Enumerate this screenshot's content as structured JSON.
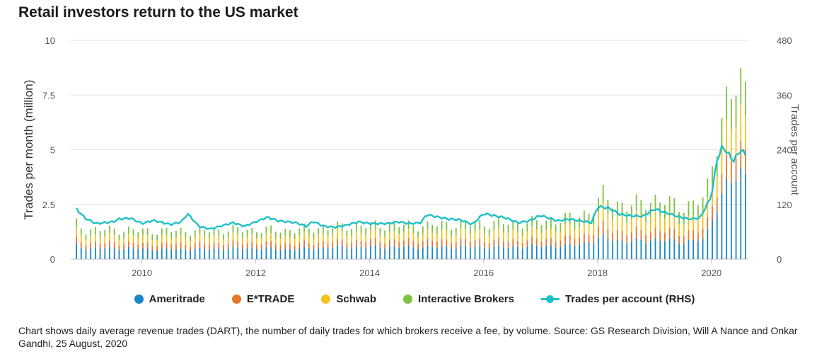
{
  "chart_data": {
    "type": "bar",
    "title": "Retail investors return to the US market",
    "ylabel": "Trades per month (million)",
    "y2label": "Trades per account",
    "ylim": [
      0,
      10
    ],
    "y2lim": [
      0,
      480
    ],
    "yticks": [
      "0",
      "2.5",
      "5",
      "7.5",
      "10"
    ],
    "y2ticks": [
      "0",
      "120",
      "240",
      "360",
      "480"
    ],
    "xticks": [
      "2010",
      "2012",
      "2014",
      "2016",
      "2018",
      "2020"
    ],
    "xrange": [
      2008.75,
      2020.65
    ],
    "grid": true,
    "legend_position": "bottom",
    "stacking": "stacked",
    "series": [
      {
        "name": "Ameritrade",
        "color": "#1a86c6",
        "points": [
          [
            2008.85,
            0.6
          ],
          [
            2009.0,
            0.5
          ],
          [
            2009.25,
            0.5
          ],
          [
            2009.5,
            0.5
          ],
          [
            2009.75,
            0.5
          ],
          [
            2010.0,
            0.45
          ],
          [
            2010.5,
            0.45
          ],
          [
            2011.0,
            0.45
          ],
          [
            2011.5,
            0.5
          ],
          [
            2012.0,
            0.5
          ],
          [
            2012.5,
            0.45
          ],
          [
            2013.0,
            0.5
          ],
          [
            2013.5,
            0.55
          ],
          [
            2014.0,
            0.55
          ],
          [
            2014.5,
            0.55
          ],
          [
            2015.0,
            0.55
          ],
          [
            2015.5,
            0.55
          ],
          [
            2016.0,
            0.55
          ],
          [
            2016.5,
            0.55
          ],
          [
            2017.0,
            0.6
          ],
          [
            2017.5,
            0.6
          ],
          [
            2017.9,
            0.8
          ],
          [
            2018.1,
            1.0
          ],
          [
            2018.5,
            0.8
          ],
          [
            2019.0,
            0.9
          ],
          [
            2019.5,
            0.8
          ],
          [
            2019.9,
            0.9
          ],
          [
            2020.1,
            2.6
          ],
          [
            2020.3,
            3.5
          ],
          [
            2020.55,
            3.8
          ]
        ]
      },
      {
        "name": "E*TRADE",
        "color": "#e4772b",
        "points": [
          [
            2008.85,
            0.3
          ],
          [
            2009.0,
            0.25
          ],
          [
            2009.5,
            0.25
          ],
          [
            2010.0,
            0.25
          ],
          [
            2011.0,
            0.25
          ],
          [
            2012.0,
            0.25
          ],
          [
            2013.0,
            0.25
          ],
          [
            2014.0,
            0.3
          ],
          [
            2015.0,
            0.3
          ],
          [
            2016.0,
            0.3
          ],
          [
            2017.0,
            0.3
          ],
          [
            2017.9,
            0.4
          ],
          [
            2018.1,
            0.5
          ],
          [
            2018.5,
            0.4
          ],
          [
            2019.0,
            0.45
          ],
          [
            2019.5,
            0.4
          ],
          [
            2019.9,
            0.45
          ],
          [
            2020.1,
            0.8
          ],
          [
            2020.3,
            1.0
          ],
          [
            2020.55,
            1.1
          ]
        ]
      },
      {
        "name": "Schwab",
        "color": "#f6c21c",
        "points": [
          [
            2008.85,
            0.35
          ],
          [
            2009.0,
            0.3
          ],
          [
            2009.5,
            0.3
          ],
          [
            2010.0,
            0.3
          ],
          [
            2011.0,
            0.3
          ],
          [
            2012.0,
            0.3
          ],
          [
            2013.0,
            0.35
          ],
          [
            2014.0,
            0.35
          ],
          [
            2015.0,
            0.35
          ],
          [
            2016.0,
            0.4
          ],
          [
            2017.0,
            0.4
          ],
          [
            2017.9,
            0.5
          ],
          [
            2018.1,
            0.7
          ],
          [
            2018.5,
            0.6
          ],
          [
            2019.0,
            0.7
          ],
          [
            2019.5,
            0.6
          ],
          [
            2019.9,
            0.7
          ],
          [
            2020.1,
            1.2
          ],
          [
            2020.3,
            1.5
          ],
          [
            2020.55,
            1.5
          ]
        ]
      },
      {
        "name": "Interactive Brokers",
        "color": "#7dc242",
        "points": [
          [
            2008.85,
            0.35
          ],
          [
            2009.0,
            0.3
          ],
          [
            2009.5,
            0.3
          ],
          [
            2010.0,
            0.3
          ],
          [
            2011.0,
            0.3
          ],
          [
            2012.0,
            0.3
          ],
          [
            2013.0,
            0.3
          ],
          [
            2014.0,
            0.35
          ],
          [
            2015.0,
            0.35
          ],
          [
            2016.0,
            0.4
          ],
          [
            2017.0,
            0.4
          ],
          [
            2017.9,
            0.5
          ],
          [
            2018.1,
            0.7
          ],
          [
            2018.5,
            0.6
          ],
          [
            2019.0,
            0.7
          ],
          [
            2019.5,
            0.6
          ],
          [
            2019.9,
            0.7
          ],
          [
            2020.1,
            1.1
          ],
          [
            2020.3,
            1.4
          ],
          [
            2020.55,
            1.5
          ]
        ]
      },
      {
        "name": "Trades per account (RHS)",
        "color": "#1dc1c8",
        "type": "line",
        "axis": "right",
        "points": [
          [
            2008.85,
            110
          ],
          [
            2009.0,
            90
          ],
          [
            2009.2,
            78
          ],
          [
            2009.5,
            82
          ],
          [
            2009.6,
            88
          ],
          [
            2009.8,
            90
          ],
          [
            2010.0,
            78
          ],
          [
            2010.2,
            85
          ],
          [
            2010.5,
            76
          ],
          [
            2010.7,
            82
          ],
          [
            2010.8,
            100
          ],
          [
            2011.0,
            72
          ],
          [
            2011.2,
            66
          ],
          [
            2011.4,
            73
          ],
          [
            2011.6,
            80
          ],
          [
            2011.8,
            72
          ],
          [
            2012.0,
            82
          ],
          [
            2012.2,
            92
          ],
          [
            2012.4,
            84
          ],
          [
            2012.7,
            80
          ],
          [
            2012.9,
            72
          ],
          [
            2013.0,
            83
          ],
          [
            2013.2,
            72
          ],
          [
            2013.4,
            70
          ],
          [
            2013.6,
            75
          ],
          [
            2013.8,
            82
          ],
          [
            2014.0,
            78
          ],
          [
            2014.3,
            78
          ],
          [
            2014.5,
            82
          ],
          [
            2014.7,
            78
          ],
          [
            2014.9,
            80
          ],
          [
            2015.0,
            98
          ],
          [
            2015.2,
            92
          ],
          [
            2015.4,
            88
          ],
          [
            2015.6,
            86
          ],
          [
            2015.8,
            76
          ],
          [
            2016.0,
            100
          ],
          [
            2016.2,
            95
          ],
          [
            2016.4,
            90
          ],
          [
            2016.6,
            80
          ],
          [
            2016.8,
            84
          ],
          [
            2017.0,
            96
          ],
          [
            2017.3,
            84
          ],
          [
            2017.5,
            88
          ],
          [
            2017.7,
            84
          ],
          [
            2017.9,
            80
          ],
          [
            2018.0,
            115
          ],
          [
            2018.2,
            112
          ],
          [
            2018.4,
            98
          ],
          [
            2018.6,
            95
          ],
          [
            2018.8,
            94
          ],
          [
            2019.0,
            110
          ],
          [
            2019.2,
            102
          ],
          [
            2019.4,
            94
          ],
          [
            2019.6,
            88
          ],
          [
            2019.8,
            90
          ],
          [
            2020.0,
            138
          ],
          [
            2020.1,
            218
          ],
          [
            2020.2,
            248
          ],
          [
            2020.3,
            230
          ],
          [
            2020.4,
            215
          ],
          [
            2020.5,
            240
          ],
          [
            2020.6,
            230
          ]
        ]
      }
    ]
  },
  "legend": {
    "items": [
      "Ameritrade",
      "E*TRADE",
      "Schwab",
      "Interactive Brokers",
      "Trades per account (RHS)"
    ]
  },
  "caption": "Chart shows daily average revenue trades (DART), the number of daily trades for which brokers receive a fee, by volume. Source: GS Research Division, Will A Nance and Onkar Gandhi, 25 August, 2020"
}
